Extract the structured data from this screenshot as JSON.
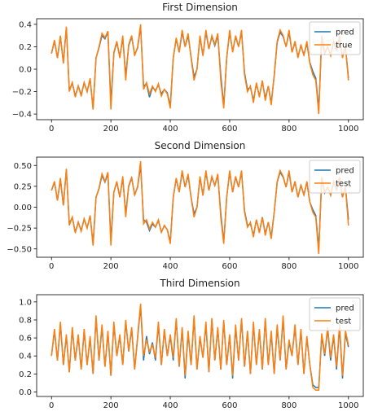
{
  "chart_data": [
    {
      "type": "line",
      "title": "First Dimension",
      "x": [
        0,
        10,
        20,
        30,
        40,
        50,
        60,
        70,
        80,
        90,
        100,
        110,
        120,
        130,
        140,
        150,
        160,
        170,
        180,
        190,
        200,
        210,
        220,
        230,
        240,
        250,
        260,
        270,
        280,
        290,
        300,
        310,
        320,
        330,
        340,
        350,
        360,
        370,
        380,
        390,
        400,
        410,
        420,
        430,
        440,
        450,
        460,
        470,
        480,
        490,
        500,
        510,
        520,
        530,
        540,
        550,
        560,
        570,
        580,
        590,
        600,
        610,
        620,
        630,
        640,
        650,
        660,
        670,
        680,
        690,
        700,
        710,
        720,
        730,
        740,
        750,
        760,
        770,
        780,
        790,
        800,
        810,
        820,
        830,
        840,
        850,
        860,
        870,
        880,
        890,
        900,
        910,
        920,
        930,
        940,
        950,
        960,
        970,
        980,
        990,
        1000
      ],
      "xlim": [
        -50,
        1050
      ],
      "xticks": [
        0,
        200,
        400,
        600,
        800,
        1000
      ],
      "ylim": [
        -0.45,
        0.45
      ],
      "yticks": [
        {
          "value": -0.4,
          "label": "−0.4"
        },
        {
          "value": -0.2,
          "label": "−0.2"
        },
        {
          "value": 0,
          "label": "0.0"
        },
        0.2,
        0.4
      ],
      "legend": "upper right",
      "series": [
        {
          "name": "pred",
          "color": "#1f77b4",
          "values": [
            0.14,
            0.25,
            0.1,
            0.29,
            0.06,
            0.37,
            -0.19,
            -0.12,
            -0.24,
            -0.15,
            -0.23,
            -0.12,
            -0.2,
            -0.09,
            -0.35,
            0.1,
            0.19,
            0.3,
            0.27,
            0.33,
            -0.3,
            0.14,
            0.24,
            0.11,
            0.28,
            -0.06,
            0.21,
            0.29,
            0.13,
            0.19,
            0.38,
            -0.15,
            -0.13,
            -0.25,
            -0.16,
            -0.19,
            -0.14,
            -0.22,
            -0.18,
            -0.21,
            -0.33,
            0.1,
            0.27,
            0.15,
            0.33,
            0.2,
            0.3,
            0.11,
            -0.07,
            0.0,
            0.29,
            0.12,
            0.33,
            0.18,
            0.29,
            0.21,
            0.3,
            -0.05,
            -0.33,
            0.1,
            0.33,
            0.16,
            0.29,
            0.2,
            0.33,
            -0.03,
            -0.18,
            -0.16,
            -0.28,
            -0.13,
            -0.24,
            -0.11,
            -0.26,
            -0.15,
            -0.3,
            -0.06,
            0.24,
            0.33,
            0.29,
            0.2,
            0.33,
            0.15,
            0.24,
            0.11,
            0.21,
            0.13,
            0.23,
            0.06,
            -0.02,
            -0.08,
            -0.36,
            0.28,
            0.14,
            0.2,
            0.13,
            0.24,
            0.17,
            0.28,
            0.11,
            0.2,
            -0.08
          ]
        },
        {
          "name": "true",
          "color": "#ff7f0e",
          "values": [
            0.14,
            0.26,
            0.1,
            0.3,
            0.05,
            0.38,
            -0.2,
            -0.12,
            -0.25,
            -0.15,
            -0.24,
            -0.12,
            -0.2,
            -0.08,
            -0.36,
            0.1,
            0.2,
            0.32,
            0.28,
            0.34,
            -0.36,
            0.15,
            0.25,
            0.1,
            0.3,
            -0.1,
            0.22,
            0.3,
            0.12,
            0.2,
            0.4,
            -0.18,
            -0.12,
            -0.22,
            -0.15,
            -0.2,
            -0.13,
            -0.24,
            -0.18,
            -0.22,
            -0.35,
            0.1,
            0.28,
            0.15,
            0.35,
            0.2,
            0.32,
            0.1,
            -0.1,
            0.0,
            0.3,
            0.12,
            0.35,
            0.18,
            0.3,
            0.22,
            0.32,
            -0.1,
            -0.35,
            0.1,
            0.35,
            0.15,
            0.3,
            0.2,
            0.35,
            -0.05,
            -0.2,
            -0.15,
            -0.3,
            -0.12,
            -0.25,
            -0.1,
            -0.28,
            -0.15,
            -0.32,
            -0.05,
            0.25,
            0.35,
            0.3,
            0.2,
            0.35,
            0.15,
            0.25,
            0.1,
            0.22,
            0.12,
            0.25,
            0.05,
            -0.05,
            -0.1,
            -0.4,
            0.3,
            0.15,
            0.2,
            0.12,
            0.25,
            0.18,
            0.3,
            0.1,
            0.2,
            -0.1
          ]
        }
      ]
    },
    {
      "type": "line",
      "title": "Second Dimension",
      "x": [
        0,
        10,
        20,
        30,
        40,
        50,
        60,
        70,
        80,
        90,
        100,
        110,
        120,
        130,
        140,
        150,
        160,
        170,
        180,
        190,
        200,
        210,
        220,
        230,
        240,
        250,
        260,
        270,
        280,
        290,
        300,
        310,
        320,
        330,
        340,
        350,
        360,
        370,
        380,
        390,
        400,
        410,
        420,
        430,
        440,
        450,
        460,
        470,
        480,
        490,
        500,
        510,
        520,
        530,
        540,
        550,
        560,
        570,
        580,
        590,
        600,
        610,
        620,
        630,
        640,
        650,
        660,
        670,
        680,
        690,
        700,
        710,
        720,
        730,
        740,
        750,
        760,
        770,
        780,
        790,
        800,
        810,
        820,
        830,
        840,
        850,
        860,
        870,
        880,
        890,
        900,
        910,
        920,
        930,
        940,
        950,
        960,
        970,
        980,
        990,
        1000
      ],
      "xlim": [
        -50,
        1050
      ],
      "xticks": [
        0,
        200,
        400,
        600,
        800,
        1000
      ],
      "ylim": [
        -0.6,
        0.6
      ],
      "yticks": [
        {
          "value": -0.5,
          "label": "−0.50"
        },
        {
          "value": -0.25,
          "label": "−0.25"
        },
        {
          "value": 0,
          "label": "0.00"
        },
        0.25,
        {
          "value": 0.5,
          "label": "0.50"
        }
      ],
      "legend": "upper right",
      "series": [
        {
          "name": "pred",
          "color": "#1f77b4",
          "values": [
            0.2,
            0.3,
            0.08,
            0.33,
            0.02,
            0.45,
            -0.2,
            -0.12,
            -0.3,
            -0.18,
            -0.28,
            -0.14,
            -0.25,
            -0.1,
            -0.44,
            0.12,
            0.22,
            0.38,
            0.3,
            0.4,
            -0.4,
            0.18,
            0.3,
            0.12,
            0.35,
            -0.08,
            0.25,
            0.35,
            0.15,
            0.24,
            0.5,
            -0.15,
            -0.18,
            -0.28,
            -0.2,
            -0.24,
            -0.16,
            -0.3,
            -0.22,
            -0.27,
            -0.42,
            0.12,
            0.34,
            0.18,
            0.42,
            0.24,
            0.38,
            0.12,
            -0.08,
            0.0,
            0.36,
            0.14,
            0.42,
            0.2,
            0.36,
            0.26,
            0.38,
            -0.07,
            -0.42,
            0.12,
            0.42,
            0.18,
            0.36,
            0.24,
            0.42,
            -0.04,
            -0.22,
            -0.2,
            -0.34,
            -0.15,
            -0.3,
            -0.12,
            -0.32,
            -0.18,
            -0.36,
            -0.06,
            0.3,
            0.42,
            0.36,
            0.24,
            0.42,
            0.18,
            0.3,
            0.12,
            0.26,
            0.15,
            0.3,
            0.06,
            -0.03,
            -0.1,
            -0.5,
            0.34,
            0.17,
            0.24,
            0.15,
            0.3,
            0.21,
            0.34,
            0.12,
            0.24,
            -0.15
          ]
        },
        {
          "name": "test",
          "color": "#ff7f0e",
          "values": [
            0.2,
            0.31,
            0.08,
            0.35,
            0.02,
            0.46,
            -0.22,
            -0.12,
            -0.31,
            -0.18,
            -0.29,
            -0.14,
            -0.25,
            -0.1,
            -0.46,
            0.12,
            0.23,
            0.4,
            0.31,
            0.42,
            -0.46,
            0.18,
            0.31,
            0.12,
            0.37,
            -0.12,
            0.26,
            0.36,
            0.14,
            0.25,
            0.55,
            -0.2,
            -0.15,
            -0.26,
            -0.18,
            -0.24,
            -0.15,
            -0.3,
            -0.22,
            -0.27,
            -0.44,
            0.12,
            0.35,
            0.18,
            0.44,
            0.24,
            0.4,
            0.12,
            -0.12,
            0.0,
            0.37,
            0.14,
            0.44,
            0.2,
            0.37,
            0.26,
            0.4,
            -0.12,
            -0.44,
            0.12,
            0.44,
            0.18,
            0.37,
            0.24,
            0.44,
            -0.06,
            -0.24,
            -0.18,
            -0.36,
            -0.15,
            -0.31,
            -0.12,
            -0.34,
            -0.18,
            -0.38,
            -0.06,
            0.31,
            0.44,
            0.37,
            0.24,
            0.44,
            0.18,
            0.31,
            0.12,
            0.27,
            0.14,
            0.31,
            0.06,
            -0.06,
            -0.12,
            -0.56,
            0.36,
            0.18,
            0.24,
            0.14,
            0.31,
            0.22,
            0.36,
            0.12,
            0.24,
            -0.22
          ]
        }
      ]
    },
    {
      "type": "line",
      "title": "Third Dimension",
      "x": [
        0,
        10,
        20,
        30,
        40,
        50,
        60,
        70,
        80,
        90,
        100,
        110,
        120,
        130,
        140,
        150,
        160,
        170,
        180,
        190,
        200,
        210,
        220,
        230,
        240,
        250,
        260,
        270,
        280,
        290,
        300,
        310,
        320,
        330,
        340,
        350,
        360,
        370,
        380,
        390,
        400,
        410,
        420,
        430,
        440,
        450,
        460,
        470,
        480,
        490,
        500,
        510,
        520,
        530,
        540,
        550,
        560,
        570,
        580,
        590,
        600,
        610,
        620,
        630,
        640,
        650,
        660,
        670,
        680,
        690,
        700,
        710,
        720,
        730,
        740,
        750,
        760,
        770,
        780,
        790,
        800,
        810,
        820,
        830,
        840,
        850,
        860,
        870,
        880,
        890,
        900,
        910,
        920,
        930,
        940,
        950,
        960,
        970,
        980,
        990,
        1000
      ],
      "xlim": [
        -50,
        1050
      ],
      "xticks": [
        0,
        200,
        400,
        600,
        800,
        1000
      ],
      "ylim": [
        -0.05,
        1.08
      ],
      "yticks": [
        {
          "value": 0,
          "label": "0.0"
        },
        0.2,
        0.4,
        0.6,
        0.8,
        {
          "value": 1,
          "label": "1.0"
        }
      ],
      "legend": "upper right",
      "series": [
        {
          "name": "pred",
          "color": "#1f77b4",
          "values": [
            0.4,
            0.68,
            0.35,
            0.75,
            0.3,
            0.62,
            0.22,
            0.7,
            0.35,
            0.62,
            0.25,
            0.68,
            0.3,
            0.6,
            0.2,
            0.82,
            0.35,
            0.72,
            0.28,
            0.66,
            0.18,
            0.75,
            0.4,
            0.62,
            0.3,
            0.78,
            0.45,
            0.7,
            0.25,
            0.6,
            0.95,
            0.35,
            0.62,
            0.42,
            0.55,
            0.35,
            0.75,
            0.3,
            0.68,
            0.4,
            0.62,
            0.35,
            0.8,
            0.28,
            0.7,
            0.15,
            0.65,
            0.3,
            0.82,
            0.25,
            0.6,
            0.38,
            0.75,
            0.22,
            0.8,
            0.35,
            0.7,
            0.25,
            0.78,
            0.3,
            0.62,
            0.15,
            0.72,
            0.35,
            0.8,
            0.28,
            0.66,
            0.2,
            0.75,
            0.3,
            0.68,
            0.25,
            0.8,
            0.3,
            0.65,
            0.2,
            0.72,
            0.35,
            0.82,
            0.25,
            0.55,
            0.4,
            0.72,
            0.3,
            0.68,
            0.2,
            0.6,
            0.3,
            0.08,
            0.05,
            0.05,
            0.62,
            0.4,
            0.7,
            0.35,
            0.62,
            0.25,
            0.72,
            0.15,
            0.65,
            0.5
          ]
        },
        {
          "name": "test",
          "color": "#ff7f0e",
          "values": [
            0.4,
            0.7,
            0.35,
            0.78,
            0.3,
            0.64,
            0.22,
            0.72,
            0.35,
            0.64,
            0.25,
            0.7,
            0.3,
            0.62,
            0.2,
            0.85,
            0.35,
            0.75,
            0.28,
            0.68,
            0.18,
            0.78,
            0.4,
            0.64,
            0.3,
            0.8,
            0.45,
            0.72,
            0.25,
            0.62,
            0.98,
            0.4,
            0.58,
            0.45,
            0.52,
            0.38,
            0.78,
            0.3,
            0.7,
            0.4,
            0.64,
            0.38,
            0.82,
            0.28,
            0.72,
            0.18,
            0.68,
            0.3,
            0.85,
            0.25,
            0.62,
            0.38,
            0.78,
            0.22,
            0.82,
            0.35,
            0.72,
            0.25,
            0.8,
            0.3,
            0.64,
            0.18,
            0.75,
            0.35,
            0.82,
            0.28,
            0.68,
            0.2,
            0.78,
            0.3,
            0.7,
            0.25,
            0.82,
            0.3,
            0.68,
            0.2,
            0.75,
            0.35,
            0.85,
            0.25,
            0.58,
            0.4,
            0.75,
            0.3,
            0.7,
            0.2,
            0.62,
            0.3,
            0.05,
            0.02,
            0.02,
            0.65,
            0.42,
            0.72,
            0.38,
            0.64,
            0.28,
            0.75,
            0.18,
            0.68,
            0.52
          ]
        }
      ]
    }
  ]
}
